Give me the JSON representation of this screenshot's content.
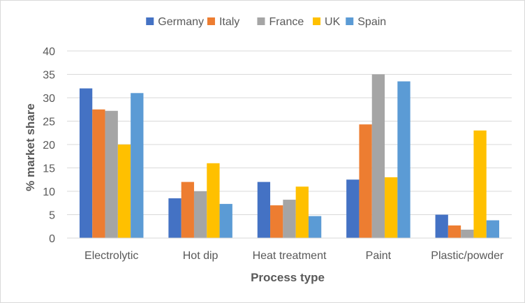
{
  "chart_data": {
    "type": "bar",
    "title": "",
    "xlabel": "Process type",
    "ylabel": "% market share",
    "ylim": [
      0,
      40
    ],
    "yticks": [
      0,
      5,
      10,
      15,
      20,
      25,
      30,
      35,
      40
    ],
    "grid": true,
    "legend_position": "top",
    "categories": [
      "Electrolytic",
      "Hot dip",
      "Heat treatment",
      "Paint",
      "Plastic/powder"
    ],
    "series": [
      {
        "name": "Germany",
        "color": "#4472C4",
        "values": [
          32,
          8.5,
          12,
          12.5,
          5
        ]
      },
      {
        "name": "Italy",
        "color": "#ED7D31",
        "values": [
          27.5,
          12,
          7,
          24.3,
          2.7
        ]
      },
      {
        "name": "France",
        "color": "#A5A5A5",
        "values": [
          27.2,
          10,
          8.2,
          35,
          1.8
        ]
      },
      {
        "name": "UK",
        "color": "#FFC000",
        "values": [
          20,
          16,
          11,
          13,
          23
        ]
      },
      {
        "name": "Spain",
        "color": "#5B9BD5",
        "values": [
          31,
          7.3,
          4.7,
          33.5,
          3.8
        ]
      }
    ]
  }
}
